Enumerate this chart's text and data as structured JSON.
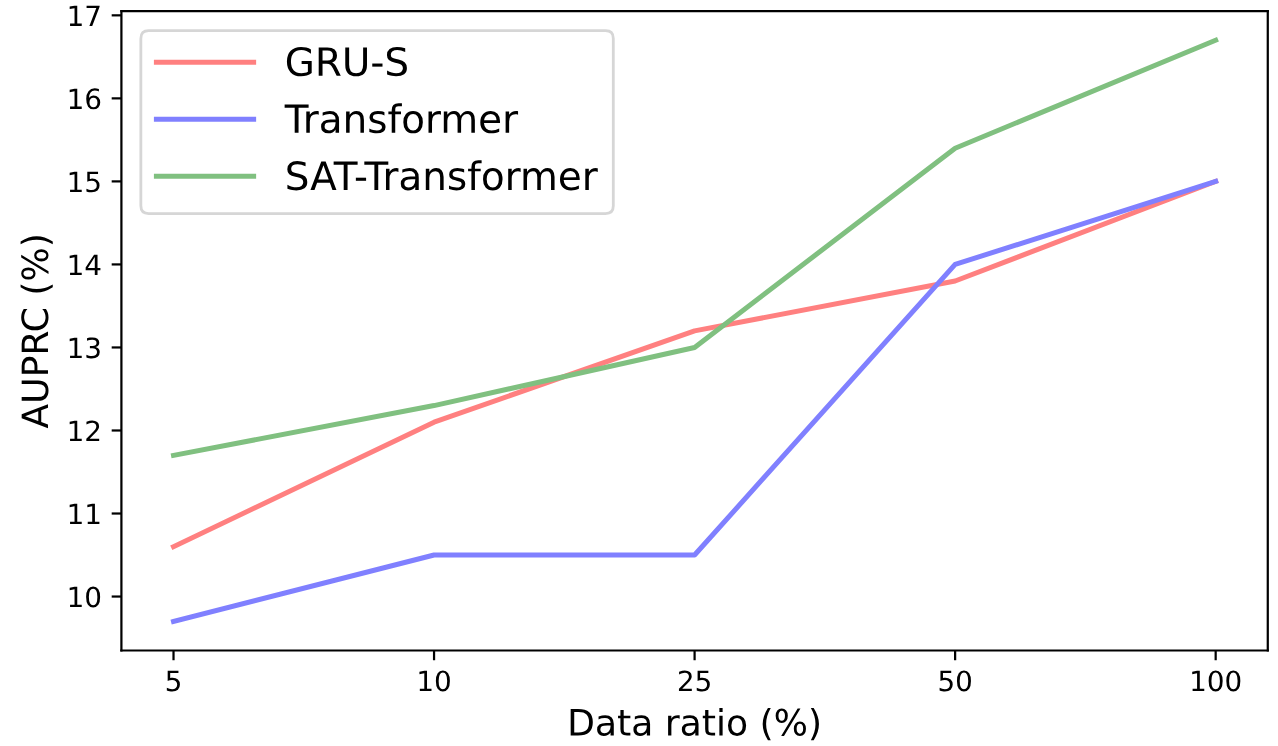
{
  "chart_data": {
    "type": "line",
    "xlabel": "Data ratio (%)",
    "ylabel": "AUPRC (%)",
    "categories": [
      "5",
      "10",
      "25",
      "50",
      "100"
    ],
    "series": [
      {
        "name": "GRU-S",
        "color": "#ff8080",
        "values": [
          10.6,
          12.1,
          13.2,
          13.8,
          15.0
        ]
      },
      {
        "name": "Transformer",
        "color": "#8080ff",
        "values": [
          9.7,
          10.5,
          10.5,
          14.0,
          15.0
        ]
      },
      {
        "name": "SAT-Transformer",
        "color": "#80c080",
        "values": [
          11.7,
          12.3,
          13.0,
          15.4,
          16.7
        ]
      }
    ],
    "ylim": [
      9.35,
      17.05
    ],
    "yticks": [
      10,
      11,
      12,
      13,
      14,
      15,
      16,
      17
    ],
    "grid": false,
    "legend": "top left",
    "marker": "none",
    "line_style": "solid"
  }
}
